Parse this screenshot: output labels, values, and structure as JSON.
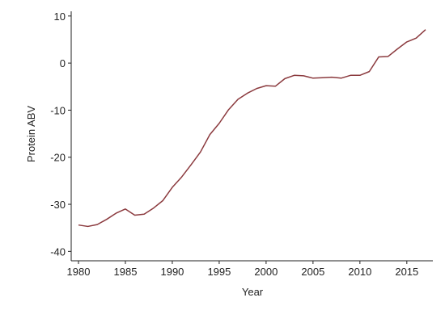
{
  "chart_data": {
    "type": "line",
    "title": "",
    "xlabel": "Year",
    "ylabel": "Protein ABV",
    "xlim": [
      1980,
      2017
    ],
    "ylim": [
      -42,
      11
    ],
    "xticks": [
      1980,
      1985,
      1990,
      1995,
      2000,
      2005,
      2010,
      2015
    ],
    "yticks": [
      10,
      0,
      -10,
      -20,
      -30,
      -40
    ],
    "grid": false,
    "legend": "none",
    "series": [
      {
        "color": "#8b3a3e",
        "x": [
          1980,
          1981,
          1982,
          1983,
          1984,
          1985,
          1986,
          1987,
          1988,
          1989,
          1990,
          1991,
          1992,
          1993,
          1994,
          1995,
          1996,
          1997,
          1998,
          1999,
          2000,
          2001,
          2002,
          2003,
          2004,
          2005,
          2006,
          2007,
          2008,
          2009,
          2010,
          2011,
          2012,
          2013,
          2014,
          2015,
          2016,
          2017
        ],
        "y": [
          -34.4,
          -34.7,
          -34.3,
          -33.2,
          -31.9,
          -31.0,
          -32.3,
          -32.1,
          -30.8,
          -29.2,
          -26.4,
          -24.2,
          -21.6,
          -18.9,
          -15.2,
          -12.8,
          -9.9,
          -7.7,
          -6.4,
          -5.4,
          -4.8,
          -4.9,
          -3.3,
          -2.6,
          -2.7,
          -3.2,
          -3.1,
          -3.0,
          -3.2,
          -2.6,
          -2.6,
          -1.8,
          1.3,
          1.4,
          3.0,
          4.5,
          5.3,
          7.1
        ]
      }
    ]
  }
}
